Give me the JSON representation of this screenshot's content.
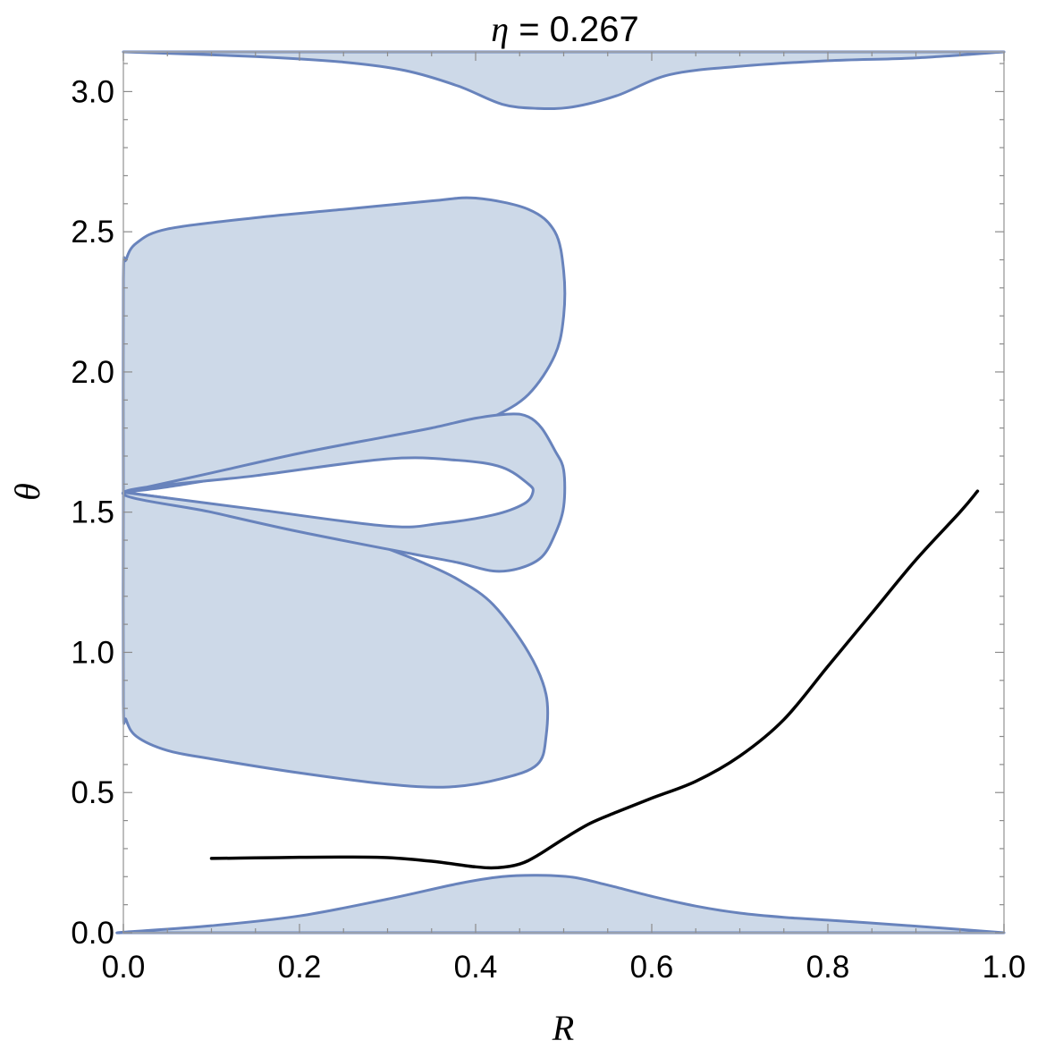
{
  "chart_data": {
    "type": "region-plot",
    "title": {
      "symbol": "η",
      "text": " = 0.267"
    },
    "xlabel": "R",
    "ylabel": "θ",
    "xlim": [
      0,
      1
    ],
    "ylim": [
      0,
      3.1416
    ],
    "xticks": [
      {
        "v": 0.0,
        "label": "0.0"
      },
      {
        "v": 0.2,
        "label": "0.2"
      },
      {
        "v": 0.4,
        "label": "0.4"
      },
      {
        "v": 0.6,
        "label": "0.6"
      },
      {
        "v": 0.8,
        "label": "0.8"
      },
      {
        "v": 1.0,
        "label": "1.0"
      }
    ],
    "yticks": [
      {
        "v": 0.0,
        "label": "0.0"
      },
      {
        "v": 0.5,
        "label": "0.5"
      },
      {
        "v": 1.0,
        "label": "1.0"
      },
      {
        "v": 1.5,
        "label": "1.5"
      },
      {
        "v": 2.0,
        "label": "2.0"
      },
      {
        "v": 2.5,
        "label": "2.5"
      },
      {
        "v": 3.0,
        "label": "3.0"
      }
    ],
    "colors": {
      "region_fill": "#cdd9e8",
      "region_stroke": "#6883bc",
      "curve": "#000000"
    },
    "regions": [
      {
        "name": "bottom-band",
        "points": [
          [
            0,
            0
          ],
          [
            0,
            0.002
          ],
          [
            0.1,
            0.025
          ],
          [
            0.2,
            0.06
          ],
          [
            0.3,
            0.12
          ],
          [
            0.38,
            0.175
          ],
          [
            0.43,
            0.2
          ],
          [
            0.47,
            0.205
          ],
          [
            0.51,
            0.198
          ],
          [
            0.55,
            0.17
          ],
          [
            0.6,
            0.13
          ],
          [
            0.65,
            0.095
          ],
          [
            0.7,
            0.07
          ],
          [
            0.75,
            0.055
          ],
          [
            0.8,
            0.045
          ],
          [
            0.88,
            0.028
          ],
          [
            0.95,
            0.012
          ],
          [
            1,
            0
          ]
        ]
      },
      {
        "name": "top-band",
        "points": [
          [
            0,
            3.1416
          ],
          [
            0.15,
            3.125
          ],
          [
            0.25,
            3.105
          ],
          [
            0.32,
            3.075
          ],
          [
            0.38,
            3.02
          ],
          [
            0.43,
            2.955
          ],
          [
            0.47,
            2.94
          ],
          [
            0.51,
            2.945
          ],
          [
            0.56,
            2.985
          ],
          [
            0.62,
            3.06
          ],
          [
            0.7,
            3.09
          ],
          [
            0.8,
            3.11
          ],
          [
            0.9,
            3.12
          ],
          [
            1,
            3.1416
          ]
        ]
      },
      {
        "name": "upper-lobe",
        "points": [
          [
            0,
            1.5708
          ],
          [
            0.05,
            1.59
          ],
          [
            0.12,
            1.625
          ],
          [
            0.2,
            1.66
          ],
          [
            0.26,
            1.69
          ],
          [
            0.3,
            1.72
          ],
          [
            0.34,
            1.76
          ],
          [
            0.38,
            1.8
          ],
          [
            0.42,
            1.84
          ],
          [
            0.46,
            1.92
          ],
          [
            0.49,
            2.06
          ],
          [
            0.5,
            2.2
          ],
          [
            0.5,
            2.36
          ],
          [
            0.49,
            2.5
          ],
          [
            0.46,
            2.58
          ],
          [
            0.4,
            2.62
          ],
          [
            0.35,
            2.61
          ],
          [
            0.25,
            2.58
          ],
          [
            0.15,
            2.55
          ],
          [
            0.05,
            2.51
          ],
          [
            0.015,
            2.46
          ],
          [
            0.003,
            2.4
          ],
          [
            0,
            2.33
          ],
          [
            0,
            1.5708
          ]
        ]
      },
      {
        "name": "lower-lobe",
        "points": [
          [
            0,
            1.5708
          ],
          [
            0.05,
            1.55
          ],
          [
            0.12,
            1.515
          ],
          [
            0.2,
            1.47
          ],
          [
            0.26,
            1.42
          ],
          [
            0.3,
            1.37
          ],
          [
            0.34,
            1.32
          ],
          [
            0.38,
            1.26
          ],
          [
            0.42,
            1.17
          ],
          [
            0.46,
            1.0
          ],
          [
            0.48,
            0.85
          ],
          [
            0.48,
            0.7
          ],
          [
            0.47,
            0.6
          ],
          [
            0.43,
            0.55
          ],
          [
            0.37,
            0.52
          ],
          [
            0.3,
            0.53
          ],
          [
            0.2,
            0.57
          ],
          [
            0.1,
            0.62
          ],
          [
            0.05,
            0.65
          ],
          [
            0.015,
            0.7
          ],
          [
            0.003,
            0.76
          ],
          [
            0,
            0.82
          ],
          [
            0,
            1.5708
          ]
        ]
      },
      {
        "name": "middle-ring",
        "points": [
          [
            0,
            1.5708
          ],
          [
            0.1,
            1.64
          ],
          [
            0.2,
            1.71
          ],
          [
            0.3,
            1.77
          ],
          [
            0.35,
            1.8
          ],
          [
            0.4,
            1.835
          ],
          [
            0.44,
            1.85
          ],
          [
            0.46,
            1.84
          ],
          [
            0.475,
            1.8
          ],
          [
            0.49,
            1.72
          ],
          [
            0.5,
            1.65
          ],
          [
            0.5,
            1.52
          ],
          [
            0.49,
            1.42
          ],
          [
            0.475,
            1.34
          ],
          [
            0.45,
            1.3
          ],
          [
            0.42,
            1.29
          ],
          [
            0.38,
            1.32
          ],
          [
            0.33,
            1.35
          ],
          [
            0.2,
            1.43
          ],
          [
            0.1,
            1.5
          ],
          [
            0,
            1.5708
          ],
          [
            0.15,
            1.63
          ],
          [
            0.3,
            1.69
          ],
          [
            0.38,
            1.685
          ],
          [
            0.43,
            1.66
          ],
          [
            0.46,
            1.6
          ],
          [
            0.465,
            1.5708
          ],
          [
            0.455,
            1.53
          ],
          [
            0.42,
            1.49
          ],
          [
            0.36,
            1.46
          ],
          [
            0.3,
            1.45
          ],
          [
            0.15,
            1.51
          ],
          [
            0,
            1.5708
          ]
        ],
        "evenodd": true
      }
    ],
    "series": [
      {
        "type": "line",
        "x": [
          0.1,
          0.15,
          0.2,
          0.25,
          0.3,
          0.35,
          0.4,
          0.425,
          0.45,
          0.47,
          0.5,
          0.53,
          0.56,
          0.6,
          0.65,
          0.7,
          0.75,
          0.8,
          0.85,
          0.9,
          0.95,
          0.97
        ],
        "y": [
          0.265,
          0.267,
          0.269,
          0.27,
          0.268,
          0.255,
          0.235,
          0.232,
          0.245,
          0.275,
          0.335,
          0.39,
          0.43,
          0.48,
          0.54,
          0.63,
          0.76,
          0.95,
          1.14,
          1.33,
          1.5,
          1.575
        ]
      }
    ]
  }
}
